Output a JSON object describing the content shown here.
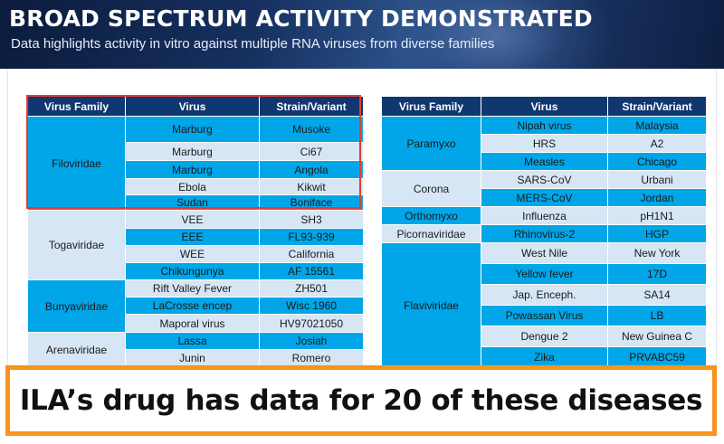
{
  "header": {
    "title": "BROAD SPECTRUM ACTIVITY DEMONSTRATED",
    "subtitle": "Data highlights activity in vitro against multiple RNA viruses from diverse families"
  },
  "columns": [
    "Virus Family",
    "Virus",
    "Strain/Variant"
  ],
  "left_table": {
    "families": [
      {
        "family": "Filoviridae",
        "rows": [
          {
            "virus": "Marburg",
            "strain": "Musoke"
          },
          {
            "virus": "Marburg",
            "strain": "Ci67"
          },
          {
            "virus": "Marburg",
            "strain": "Angola"
          },
          {
            "virus": "Ebola",
            "strain": "Kikwit"
          },
          {
            "virus": "Sudan",
            "strain": "Boniface"
          }
        ]
      },
      {
        "family": "Togaviridae",
        "rows": [
          {
            "virus": "VEE",
            "strain": "SH3"
          },
          {
            "virus": "EEE",
            "strain": "FL93-939"
          },
          {
            "virus": "WEE",
            "strain": "California"
          },
          {
            "virus": "Chikungunya",
            "strain": "AF 15561"
          }
        ]
      },
      {
        "family": "Bunyaviridae",
        "rows": [
          {
            "virus": "Rift Valley Fever",
            "strain": "ZH501"
          },
          {
            "virus": "LaCrosse encep",
            "strain": "Wisc 1960"
          },
          {
            "virus": "Maporal virus",
            "strain": "HV97021050"
          }
        ]
      },
      {
        "family": "Arenaviridae",
        "rows": [
          {
            "virus": "Lassa",
            "strain": "Josiah"
          },
          {
            "virus": "Junin",
            "strain": "Romero"
          }
        ]
      }
    ]
  },
  "right_table": {
    "families": [
      {
        "family": "Paramyxo",
        "rows": [
          {
            "virus": "Nipah virus",
            "strain": "Malaysia"
          },
          {
            "virus": "HRS",
            "strain": "A2"
          },
          {
            "virus": "Measles",
            "strain": "Chicago"
          }
        ]
      },
      {
        "family": "Corona",
        "rows": [
          {
            "virus": "SARS-CoV",
            "strain": "Urbani"
          },
          {
            "virus": "MERS-CoV",
            "strain": "Jordan"
          }
        ]
      },
      {
        "family": "Orthomyxo",
        "rows": [
          {
            "virus": "Influenza",
            "strain": "pH1N1"
          }
        ]
      },
      {
        "family": "Picornaviridae",
        "rows": [
          {
            "virus": "Rhinovirus-2",
            "strain": "HGP"
          }
        ]
      },
      {
        "family": "Flaviviridae",
        "rows": [
          {
            "virus": "West Nile",
            "strain": "New York"
          },
          {
            "virus": "Yellow fever",
            "strain": "17D"
          },
          {
            "virus": "Jap. Enceph.",
            "strain": "SA14"
          },
          {
            "virus": "Powassan Virus",
            "strain": "LB"
          },
          {
            "virus": "Dengue 2",
            "strain": "New Guinea C"
          },
          {
            "virus": "Zika",
            "strain": "PRVABC59"
          }
        ]
      }
    ]
  },
  "banner": {
    "text": "ILA’s drug has data for 20 of these diseases"
  },
  "colors": {
    "header_bg": "#113770",
    "row_blue": "#00a6e8",
    "row_light": "#d7e6f5",
    "highlight": "#e53935",
    "banner_border": "#f7941d"
  }
}
